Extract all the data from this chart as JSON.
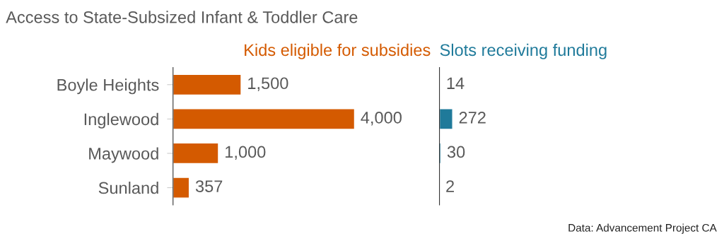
{
  "chart_data": [
    {
      "type": "bar",
      "orientation": "horizontal",
      "title": "Access to State-Subsized Infant & Toddler Care",
      "subtitle": "Kids eligible for subsidies",
      "categories": [
        "Boyle Heights",
        "Inglewood",
        "Maywood",
        "Sunland"
      ],
      "series": [
        {
          "color": "#d45a00",
          "values": [
            1500,
            4000,
            1000,
            357
          ],
          "value_labels": [
            "1,500",
            "4,000",
            "1,000",
            "357"
          ]
        }
      ],
      "grid": false,
      "legend": false,
      "tick_labels": "y"
    },
    {
      "type": "bar",
      "orientation": "horizontal",
      "subtitle": "Slots receiving funding",
      "series": [
        {
          "color": "#1f7a9a",
          "values": [
            14,
            272,
            30,
            2
          ],
          "value_labels": [
            "14",
            "272",
            "30",
            "2"
          ]
        }
      ],
      "grid": false,
      "legend": false,
      "tick_labels": false,
      "annotations": [
        "Data: Advancement Project CA"
      ]
    }
  ]
}
